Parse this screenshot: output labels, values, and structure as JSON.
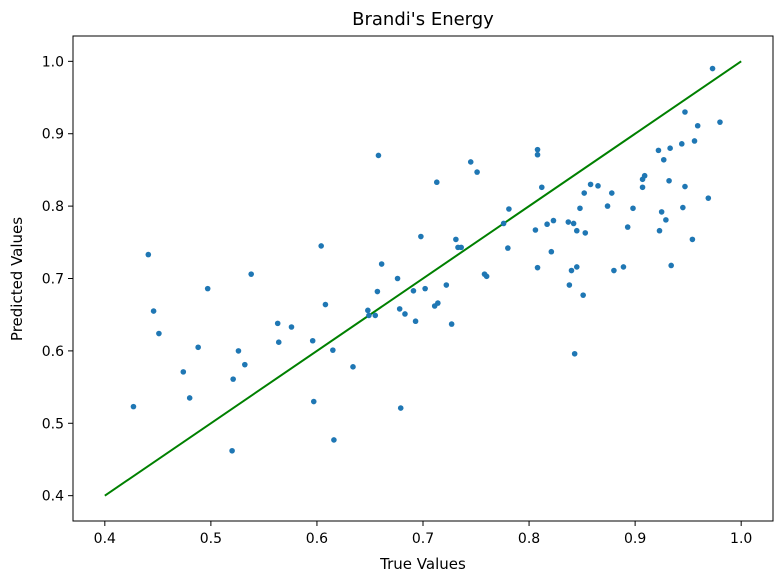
{
  "chart_data": {
    "type": "scatter",
    "title": "Brandi's Energy",
    "xlabel": "True Values",
    "ylabel": "Predicted Values",
    "xlim": [
      0.37,
      1.03
    ],
    "ylim": [
      0.365,
      1.035
    ],
    "xticks": [
      0.4,
      0.5,
      0.6,
      0.7,
      0.8,
      0.9,
      1.0
    ],
    "xtick_labels": [
      "0.4",
      "0.5",
      "0.6",
      "0.7",
      "0.8",
      "0.9",
      "1.0"
    ],
    "yticks": [
      0.4,
      0.5,
      0.6,
      0.7,
      0.8,
      0.9,
      1.0
    ],
    "ytick_labels": [
      "0.4",
      "0.5",
      "0.6",
      "0.7",
      "0.8",
      "0.9",
      "1.0"
    ],
    "grid": false,
    "legend": "none",
    "colors": {
      "points": "#1f77b4",
      "line": "#008000",
      "axes": "#000000"
    },
    "reference_line": {
      "x": [
        0.4,
        1.0
      ],
      "y": [
        0.4,
        1.0
      ]
    },
    "points": [
      [
        0.427,
        0.523
      ],
      [
        0.441,
        0.733
      ],
      [
        0.446,
        0.655
      ],
      [
        0.451,
        0.624
      ],
      [
        0.474,
        0.571
      ],
      [
        0.48,
        0.535
      ],
      [
        0.488,
        0.605
      ],
      [
        0.497,
        0.686
      ],
      [
        0.52,
        0.462
      ],
      [
        0.521,
        0.561
      ],
      [
        0.526,
        0.6
      ],
      [
        0.532,
        0.581
      ],
      [
        0.538,
        0.706
      ],
      [
        0.563,
        0.638
      ],
      [
        0.564,
        0.612
      ],
      [
        0.576,
        0.633
      ],
      [
        0.596,
        0.614
      ],
      [
        0.597,
        0.53
      ],
      [
        0.604,
        0.745
      ],
      [
        0.608,
        0.664
      ],
      [
        0.615,
        0.601
      ],
      [
        0.616,
        0.477
      ],
      [
        0.634,
        0.578
      ],
      [
        0.648,
        0.656
      ],
      [
        0.649,
        0.649
      ],
      [
        0.655,
        0.649
      ],
      [
        0.657,
        0.682
      ],
      [
        0.658,
        0.87
      ],
      [
        0.661,
        0.72
      ],
      [
        0.676,
        0.7
      ],
      [
        0.678,
        0.658
      ],
      [
        0.679,
        0.521
      ],
      [
        0.683,
        0.651
      ],
      [
        0.691,
        0.683
      ],
      [
        0.693,
        0.641
      ],
      [
        0.698,
        0.758
      ],
      [
        0.702,
        0.686
      ],
      [
        0.711,
        0.662
      ],
      [
        0.713,
        0.833
      ],
      [
        0.714,
        0.666
      ],
      [
        0.722,
        0.691
      ],
      [
        0.727,
        0.637
      ],
      [
        0.731,
        0.754
      ],
      [
        0.733,
        0.743
      ],
      [
        0.736,
        0.743
      ],
      [
        0.745,
        0.861
      ],
      [
        0.751,
        0.847
      ],
      [
        0.758,
        0.706
      ],
      [
        0.76,
        0.703
      ],
      [
        0.776,
        0.776
      ],
      [
        0.78,
        0.742
      ],
      [
        0.781,
        0.796
      ],
      [
        0.806,
        0.767
      ],
      [
        0.808,
        0.878
      ],
      [
        0.808,
        0.871
      ],
      [
        0.808,
        0.715
      ],
      [
        0.812,
        0.826
      ],
      [
        0.817,
        0.775
      ],
      [
        0.821,
        0.737
      ],
      [
        0.823,
        0.78
      ],
      [
        0.837,
        0.778
      ],
      [
        0.838,
        0.691
      ],
      [
        0.84,
        0.711
      ],
      [
        0.842,
        0.776
      ],
      [
        0.843,
        0.596
      ],
      [
        0.845,
        0.716
      ],
      [
        0.845,
        0.766
      ],
      [
        0.848,
        0.797
      ],
      [
        0.851,
        0.677
      ],
      [
        0.852,
        0.818
      ],
      [
        0.853,
        0.763
      ],
      [
        0.858,
        0.83
      ],
      [
        0.865,
        0.828
      ],
      [
        0.874,
        0.8
      ],
      [
        0.878,
        0.818
      ],
      [
        0.88,
        0.711
      ],
      [
        0.889,
        0.716
      ],
      [
        0.893,
        0.771
      ],
      [
        0.898,
        0.797
      ],
      [
        0.907,
        0.837
      ],
      [
        0.907,
        0.826
      ],
      [
        0.909,
        0.842
      ],
      [
        0.922,
        0.877
      ],
      [
        0.923,
        0.766
      ],
      [
        0.925,
        0.792
      ],
      [
        0.927,
        0.864
      ],
      [
        0.929,
        0.781
      ],
      [
        0.932,
        0.835
      ],
      [
        0.933,
        0.88
      ],
      [
        0.934,
        0.718
      ],
      [
        0.944,
        0.886
      ],
      [
        0.945,
        0.798
      ],
      [
        0.947,
        0.827
      ],
      [
        0.947,
        0.93
      ],
      [
        0.954,
        0.754
      ],
      [
        0.956,
        0.89
      ],
      [
        0.959,
        0.911
      ],
      [
        0.969,
        0.811
      ],
      [
        0.973,
        0.99
      ],
      [
        0.98,
        0.916
      ]
    ]
  }
}
